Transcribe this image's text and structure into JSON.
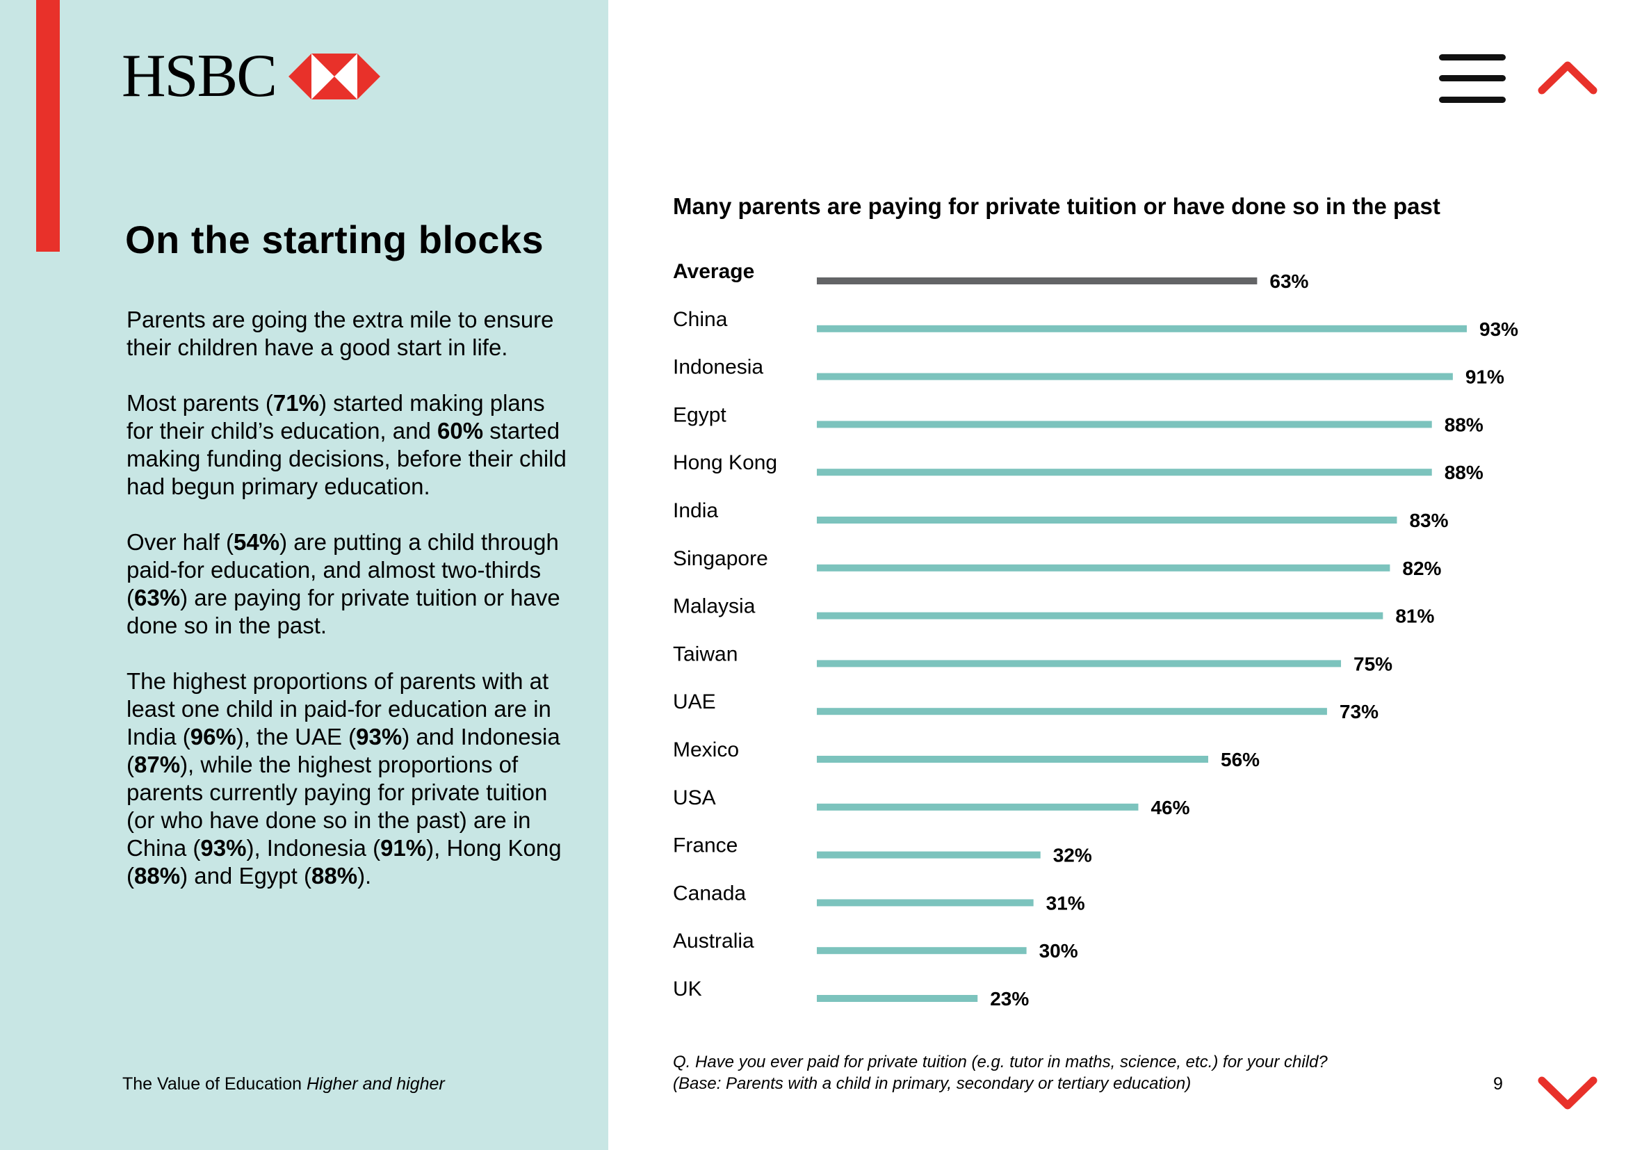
{
  "brand": {
    "name": "HSBC",
    "accent_color": "#e8312a",
    "panel_color": "#c8e6e4"
  },
  "section": {
    "title": "On the starting blocks",
    "paragraphs": [
      [
        {
          "t": "Parents are going the extra mile to ensure their children have a good start in life.",
          "b": false
        }
      ],
      [
        {
          "t": "Most parents (",
          "b": false
        },
        {
          "t": "71%",
          "b": true
        },
        {
          "t": ") started making plans for their child’s education, and ",
          "b": false
        },
        {
          "t": "60%",
          "b": true
        },
        {
          "t": " started making funding decisions, before their child had begun primary education.",
          "b": false
        }
      ],
      [
        {
          "t": "Over half (",
          "b": false
        },
        {
          "t": "54%",
          "b": true
        },
        {
          "t": ") are putting a child through paid-for education, and almost two-thirds (",
          "b": false
        },
        {
          "t": "63%",
          "b": true
        },
        {
          "t": ") are paying for private tuition or have done so in the past.",
          "b": false
        }
      ],
      [
        {
          "t": "The highest proportions of parents with at least one child in paid-for education are in India (",
          "b": false
        },
        {
          "t": "96%",
          "b": true
        },
        {
          "t": "), the UAE (",
          "b": false
        },
        {
          "t": "93%",
          "b": true
        },
        {
          "t": ") and Indonesia (",
          "b": false
        },
        {
          "t": "87%",
          "b": true
        },
        {
          "t": "), while the highest proportions of parents currently paying for private tuition (or who have done so in the past) are in China (",
          "b": false
        },
        {
          "t": "93%",
          "b": true
        },
        {
          "t": "), Indonesia (",
          "b": false
        },
        {
          "t": "91%",
          "b": true
        },
        {
          "t": "), Hong Kong (",
          "b": false
        },
        {
          "t": "88%",
          "b": true
        },
        {
          "t": ") and Egypt (",
          "b": false
        },
        {
          "t": "88%",
          "b": true
        },
        {
          "t": ").",
          "b": false
        }
      ]
    ]
  },
  "footer": {
    "publication": "The Value of Education",
    "subtitle": "Higher and higher",
    "page_number": "9"
  },
  "navigation": {
    "menu_icon": "hamburger-menu-icon",
    "up_icon": "chevron-up-icon",
    "down_icon": "chevron-down-icon"
  },
  "chart_data": {
    "type": "bar",
    "orientation": "horizontal",
    "title": "Many parents are paying for private tuition or have done so in the past",
    "categories": [
      "Average",
      "China",
      "Indonesia",
      "Egypt",
      "Hong Kong",
      "India",
      "Singapore",
      "Malaysia",
      "Taiwan",
      "UAE",
      "Mexico",
      "USA",
      "France",
      "Canada",
      "Australia",
      "UK"
    ],
    "values": [
      63,
      93,
      91,
      88,
      88,
      83,
      82,
      81,
      75,
      73,
      56,
      46,
      32,
      31,
      30,
      23
    ],
    "value_labels": [
      "63%",
      "93%",
      "91%",
      "88%",
      "88%",
      "83%",
      "82%",
      "81%",
      "75%",
      "73%",
      "56%",
      "46%",
      "32%",
      "31%",
      "30%",
      "23%"
    ],
    "unit": "%",
    "xlim": [
      0,
      100
    ],
    "grid": false,
    "colors": {
      "average": "#636466",
      "default": "#7cc3bd"
    },
    "footnote": [
      "Q. Have you ever paid for private tuition (e.g. tutor in maths, science, etc.) for your child?",
      "(Base: Parents with a child in primary, secondary or tertiary education)"
    ]
  }
}
